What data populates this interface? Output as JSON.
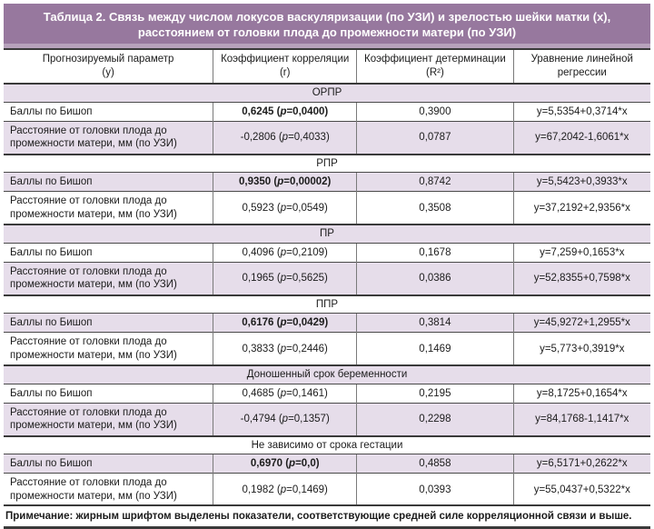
{
  "title": {
    "line1": "Таблица 2. Связь между числом локусов васкуляризации (по УЗИ) и зрелостью шейки матки (x),",
    "line2": "расстоянием от головки плода до промежности матери (по УЗИ)"
  },
  "header": {
    "col1": {
      "line1": "Прогнозируемый параметр",
      "line2": "(y)"
    },
    "col2": {
      "line1": "Коэффициент корреляции",
      "line2": "(r)"
    },
    "col3": {
      "line1": "Коэффициент детерминации",
      "line2": "(R²)"
    },
    "col4": {
      "line1": "Уравнение линейной",
      "line2": "регрессии"
    }
  },
  "p_label": "p",
  "sections": [
    {
      "name": "ОРПР",
      "rows": [
        {
          "param": "Баллы по Бишоп",
          "r": "0,6245",
          "p": "0,0400",
          "bold": true,
          "r2": "0,3900",
          "eq": "y=5,5354+0,3714*x"
        },
        {
          "param": "Расстояние от головки плода до промежности матери, мм (по УЗИ)",
          "r": "-0,2806",
          "p": "0,4033",
          "bold": false,
          "r2": "0,0787",
          "eq": "y=67,2042-1,6061*x"
        }
      ]
    },
    {
      "name": "РПР",
      "rows": [
        {
          "param": "Баллы по Бишоп",
          "r": "0,9350",
          "p": "0,00002",
          "bold": true,
          "r2": "0,8742",
          "eq": "y=5,5423+0,3933*x"
        },
        {
          "param": "Расстояние от головки плода до промежности матери, мм (по УЗИ)",
          "r": "0,5923",
          "p": "0,0549",
          "bold": false,
          "r2": "0,3508",
          "eq": "y=37,2192+2,9356*x"
        }
      ]
    },
    {
      "name": "ПР",
      "rows": [
        {
          "param": "Баллы по Бишоп",
          "r": "0,4096",
          "p": "0,2109",
          "bold": false,
          "r2": "0,1678",
          "eq": "y=7,259+0,1653*x"
        },
        {
          "param": "Расстояние от головки плода до промежности матери, мм (по УЗИ)",
          "r": "0,1965",
          "p": "0,5625",
          "bold": false,
          "r2": "0,0386",
          "eq": "y=52,8355+0,7598*x"
        }
      ]
    },
    {
      "name": "ППР",
      "rows": [
        {
          "param": "Баллы по Бишоп",
          "r": "0,6176",
          "p": "0,0429",
          "bold": true,
          "r2": "0,3814",
          "eq": "y=45,9272+1,2955*x"
        },
        {
          "param": "Расстояние от головки плода до промежности матери, мм (по УЗИ)",
          "r": "0,3833",
          "p": "0,2446",
          "bold": false,
          "r2": "0,1469",
          "eq": "y=5,773+0,3919*x"
        }
      ]
    },
    {
      "name": "Доношенный срок беременности",
      "rows": [
        {
          "param": "Баллы по Бишоп",
          "r": "0,4685",
          "p": "0,1461",
          "bold": false,
          "r2": "0,2195",
          "eq": "y=8,1725+0,1654*x"
        },
        {
          "param": "Расстояние от головки плода до промежности матери, мм (по УЗИ)",
          "r": "-0,4794",
          "p": "0,1357",
          "bold": false,
          "r2": "0,2298",
          "eq": "y=84,1768-1,1417*x"
        }
      ]
    },
    {
      "name": "Не зависимо от срока гестации",
      "rows": [
        {
          "param": "Баллы по Бишоп",
          "r": "0,6970",
          "p": "0,0",
          "bold": true,
          "r2": "0,4858",
          "eq": "y=6,5171+0,2622*x"
        },
        {
          "param": "Расстояние от головки плода до промежности матери, мм (по УЗИ)",
          "r": "0,1982",
          "p": "0,1469",
          "bold": false,
          "r2": "0,0393",
          "eq": "y=55,0437+0,5322*x"
        }
      ]
    }
  ],
  "note": "Примечание: жирным шрифтом выделены показатели, соответствующие средней силе корреляционной связи и выше.",
  "colors": {
    "title_bg": "#97789e",
    "title_bg_light": "#b7a2bc",
    "row_purple": "#e6ddea",
    "row_white": "#ffffff",
    "border_dark": "#3a3a3a",
    "text": "#1c1c1c",
    "title_text": "#ffffff"
  }
}
